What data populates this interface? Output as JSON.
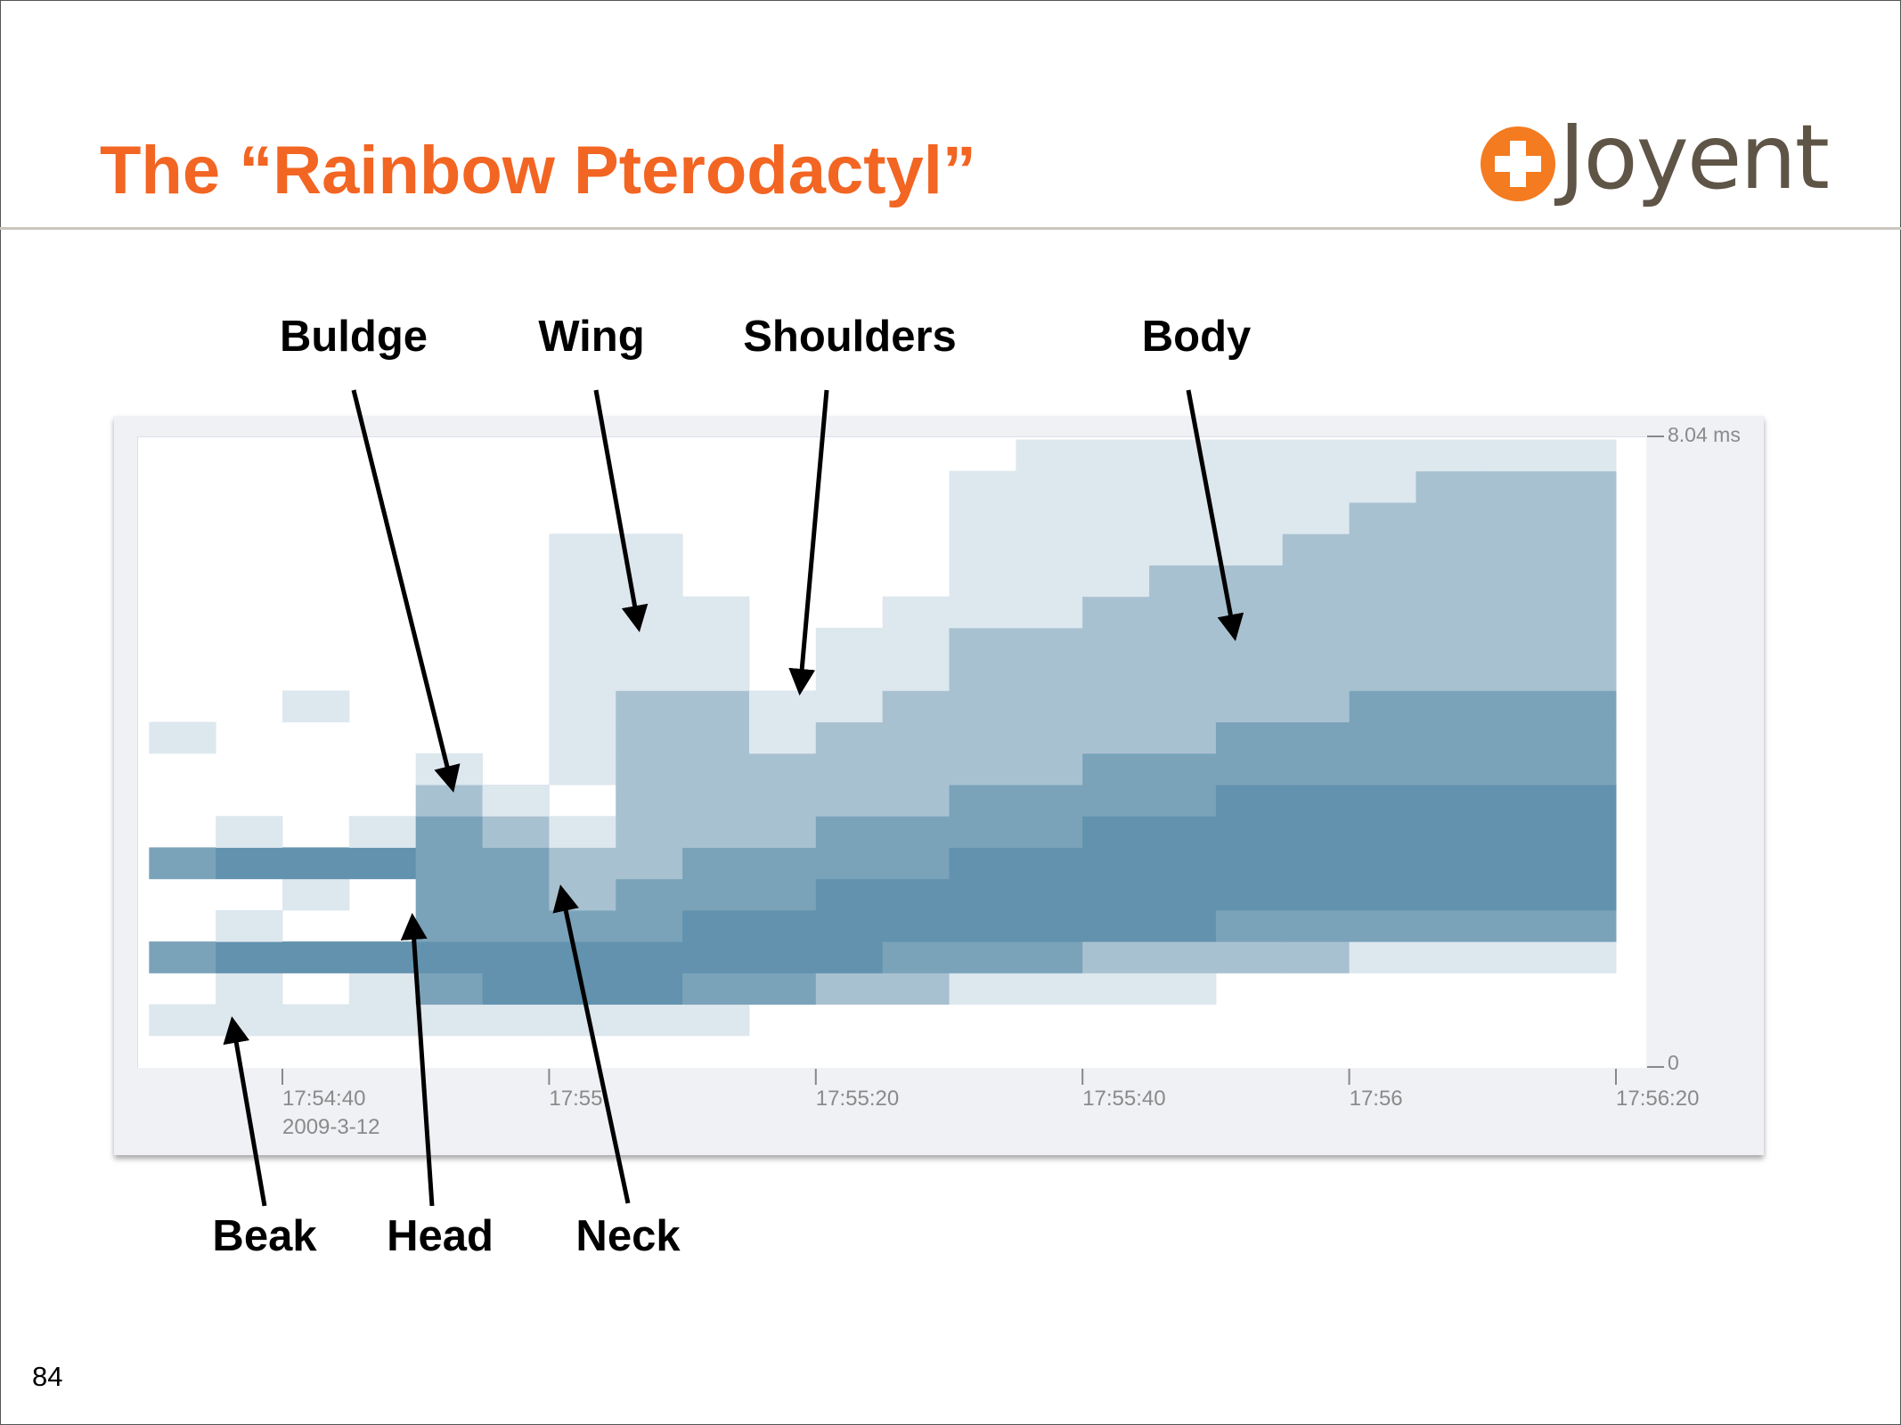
{
  "slide": {
    "title": "The “Rainbow Pterodactyl”",
    "page_number": "84",
    "logo_text": "Joyent",
    "accent_color": "#f26522"
  },
  "annotations": {
    "top": [
      "Buldge",
      "Wing",
      "Shoulders",
      "Body"
    ],
    "bottom": [
      "Beak",
      "Head",
      "Neck"
    ]
  },
  "chart_data": {
    "type": "heatmap",
    "x_ticks": [
      "17:54:40",
      "17:55",
      "17:55:20",
      "17:55:40",
      "17:56",
      "17:56:20"
    ],
    "x_date_label": "2009-3-12",
    "y_ticks": [
      "8.04 ms",
      "0"
    ],
    "xlim": [
      "17:54:29",
      "17:56:23"
    ],
    "ylim": [
      0,
      8.04
    ],
    "y_unit": "ms",
    "x_start": "17:54:30",
    "bin_seconds": 5,
    "bin_ms": 0.4,
    "intensity_colors": [
      "#ffffff",
      "#dde7ee",
      "#a8c1d0",
      "#7aa3ba",
      "#6292ae"
    ],
    "columns": [
      "01030030001000000000",
      "01141041000000000000",
      "01040140000100000000",
      "01140041000000000000",
      "01343333210000000000",
      "01443332100000000000",
      "01443221011111111000",
      "01443322222211111000",
      "01344332222211100000",
      "00344332221100000000",
      "00244433222111000000",
      "00234433222211100000",
      "00134443322222111110",
      "00134443322222111111",
      "00124444332222211111",
      "00124444332222221111",
      "00023444433222221111",
      "00023444433222222111",
      "00013444433322222211",
      "00013444433322222221",
      "00013444433322222221",
      "00013444433322222221"
    ]
  }
}
